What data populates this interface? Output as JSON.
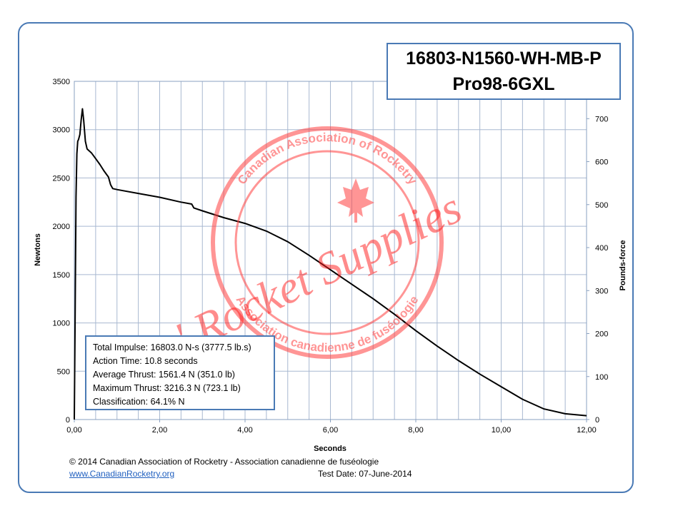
{
  "chart_data": {
    "type": "line",
    "title": "16803-N1560-WH-MB-P",
    "subtitle": "Pro98-6GXL",
    "xlabel": "Seconds",
    "ylabel": "Newtons",
    "y2label": "Pounds-force",
    "xlim": [
      0,
      12
    ],
    "ylim": [
      0,
      3500
    ],
    "y2lim": [
      0,
      786.8
    ],
    "x_ticks": [
      "0,00",
      "2,00",
      "4,00",
      "6,00",
      "8,00",
      "10,00",
      "12,00"
    ],
    "y_ticks": [
      "0",
      "500",
      "1000",
      "1500",
      "2000",
      "2500",
      "3000",
      "3500"
    ],
    "y2_ticks": [
      "0",
      "100",
      "200",
      "300",
      "400",
      "500",
      "600",
      "700"
    ],
    "grid": true,
    "series": [
      {
        "values": [
          [
            0.0,
            0
          ],
          [
            0.02,
            1100
          ],
          [
            0.04,
            2300
          ],
          [
            0.06,
            2750
          ],
          [
            0.08,
            2880
          ],
          [
            0.1,
            2900
          ],
          [
            0.13,
            2950
          ],
          [
            0.16,
            3100
          ],
          [
            0.19,
            3216
          ],
          [
            0.22,
            3100
          ],
          [
            0.26,
            2880
          ],
          [
            0.3,
            2800
          ],
          [
            0.4,
            2760
          ],
          [
            0.5,
            2700
          ],
          [
            0.6,
            2640
          ],
          [
            0.7,
            2570
          ],
          [
            0.8,
            2510
          ],
          [
            0.85,
            2430
          ],
          [
            0.9,
            2390
          ],
          [
            1.0,
            2380
          ],
          [
            1.5,
            2340
          ],
          [
            2.0,
            2300
          ],
          [
            2.5,
            2250
          ],
          [
            2.75,
            2230
          ],
          [
            2.8,
            2190
          ],
          [
            3.0,
            2160
          ],
          [
            3.5,
            2090
          ],
          [
            4.0,
            2030
          ],
          [
            4.5,
            1950
          ],
          [
            5.0,
            1840
          ],
          [
            5.5,
            1700
          ],
          [
            6.0,
            1550
          ],
          [
            6.5,
            1400
          ],
          [
            7.0,
            1250
          ],
          [
            7.5,
            1090
          ],
          [
            8.0,
            920
          ],
          [
            8.5,
            760
          ],
          [
            9.0,
            610
          ],
          [
            9.5,
            470
          ],
          [
            10.0,
            340
          ],
          [
            10.5,
            210
          ],
          [
            11.0,
            110
          ],
          [
            11.5,
            60
          ],
          [
            12.0,
            40
          ]
        ]
      }
    ],
    "legend": "none"
  },
  "stats": {
    "total_impulse": "Total Impulse: 16803.0 N-s (3777.5 lb.s)",
    "action_time": "Action Time: 10.8 seconds",
    "average_thrust": "Average Thrust: 1561.4 N (351.0 lb)",
    "maximum_thrust": "Maximum Thrust: 3216.3 N (723.1 lb)",
    "classification": "Classification: 64.1% N"
  },
  "footer": {
    "copyright": "© 2014 Canadian Association of Rocketry - Association canadienne de fuséologie",
    "link": "www.CanadianRocketry.org",
    "test_date": "Test  Date: 07-June-2014"
  },
  "watermark": {
    "text": "Chris' Rocket Supplies",
    "seal_top": "Canadian Association of Rocketry",
    "seal_bottom": "Association canadienne de fuséologie",
    "color": "#ff2020"
  },
  "colors": {
    "frame": "#4a7ab5",
    "grid": "#a8b8d0",
    "line": "#000000"
  }
}
